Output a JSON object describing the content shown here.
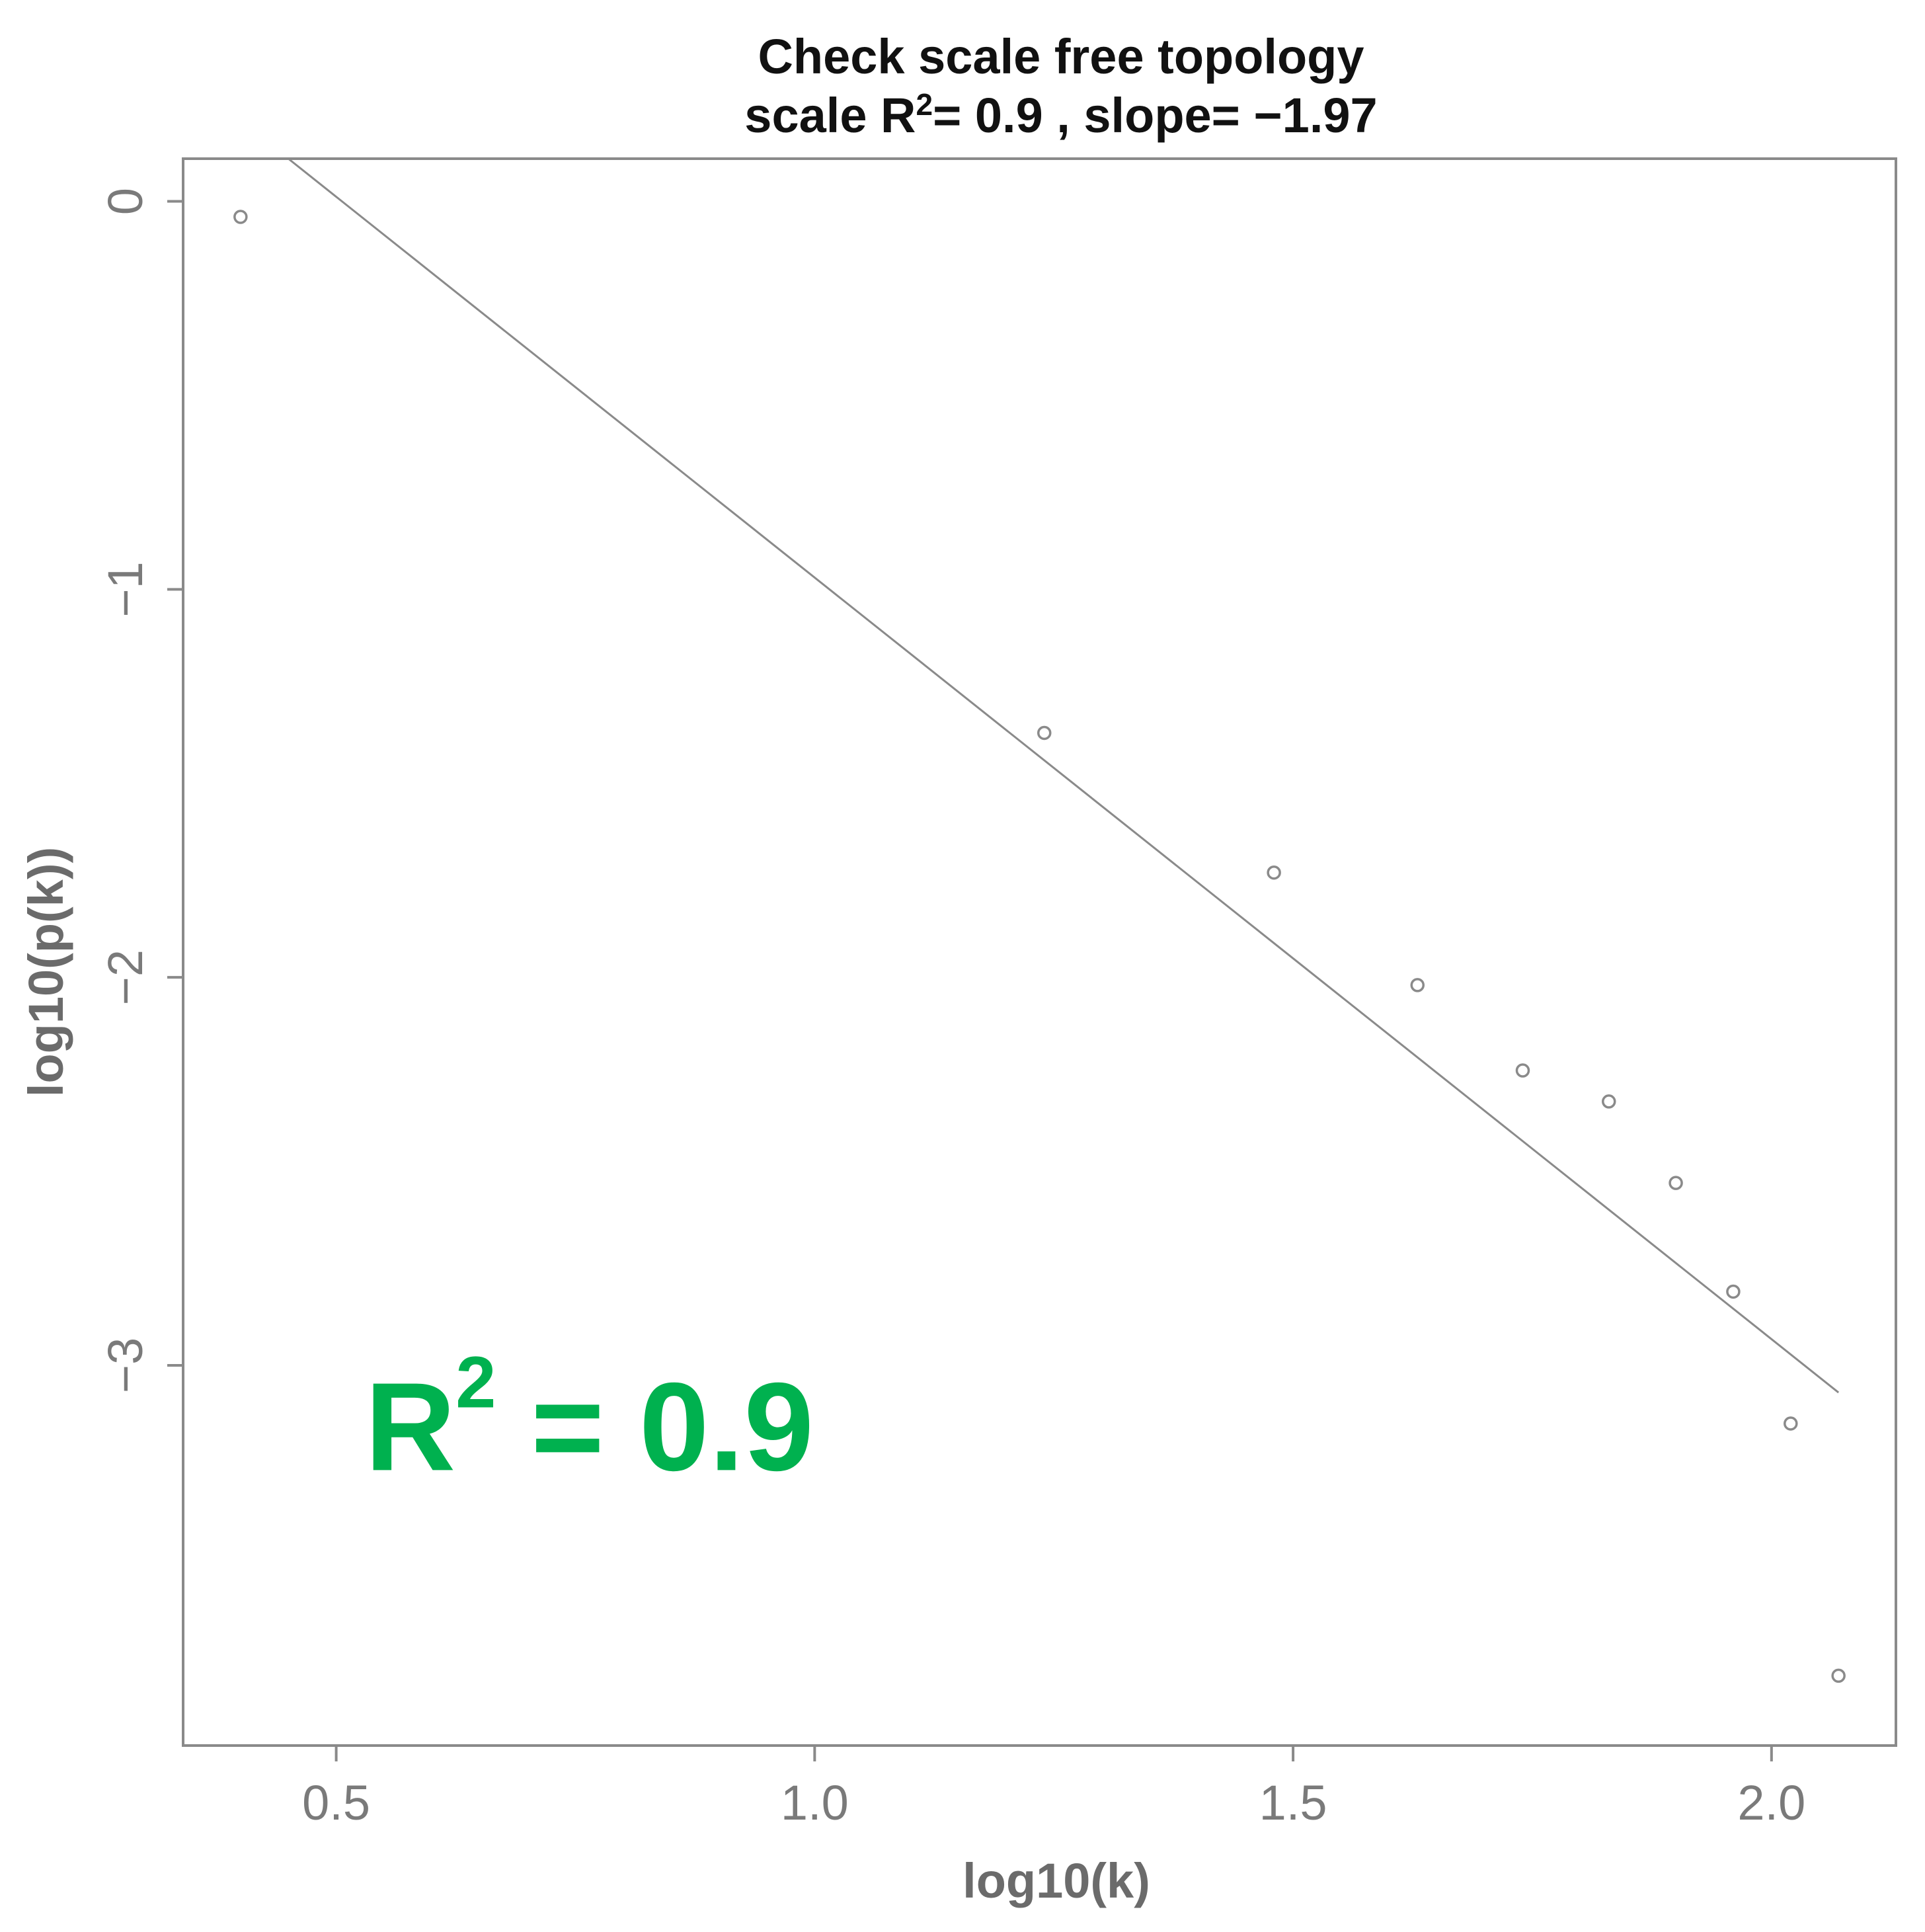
{
  "chart_data": {
    "type": "scatter",
    "title": "Check scale free topology",
    "subtitle": {
      "prefix": "scale R",
      "superscript": "2",
      "suffix": "= 0.9 , slope= −1.97"
    },
    "xlabel": "log10(k)",
    "ylabel": "log10(p(k))",
    "xlim": [
      0.34,
      2.13
    ],
    "ylim": [
      -3.98,
      0.11
    ],
    "x_ticks": [
      0.5,
      1.0,
      1.5,
      2.0
    ],
    "x_tick_labels": [
      "0.5",
      "1.0",
      "1.5",
      "2.0"
    ],
    "y_ticks": [
      0,
      -1,
      -2,
      -3
    ],
    "y_tick_labels": [
      "0",
      "−1",
      "−2",
      "−3"
    ],
    "points": [
      {
        "x": 0.4,
        "y": -0.04
      },
      {
        "x": 1.24,
        "y": -1.37
      },
      {
        "x": 1.48,
        "y": -1.73
      },
      {
        "x": 1.63,
        "y": -2.02
      },
      {
        "x": 1.74,
        "y": -2.24
      },
      {
        "x": 1.83,
        "y": -2.32
      },
      {
        "x": 1.9,
        "y": -2.53
      },
      {
        "x": 1.96,
        "y": -2.81
      },
      {
        "x": 2.02,
        "y": -3.15
      },
      {
        "x": 2.07,
        "y": -3.8
      }
    ],
    "fit_line": {
      "x": [
        0.45,
        2.07
      ],
      "y": [
        0.11,
        -3.07
      ]
    },
    "annotation": {
      "prefix": "R",
      "superscript": "2",
      "suffix": " = 0.9",
      "x": 0.53,
      "y": -3.27
    },
    "grid": false,
    "legend": "none",
    "colors": {
      "points": "#8a8a8a",
      "line": "#8a8a8a",
      "frame": "#8a8a8a",
      "annotation": "#00b14f"
    }
  }
}
